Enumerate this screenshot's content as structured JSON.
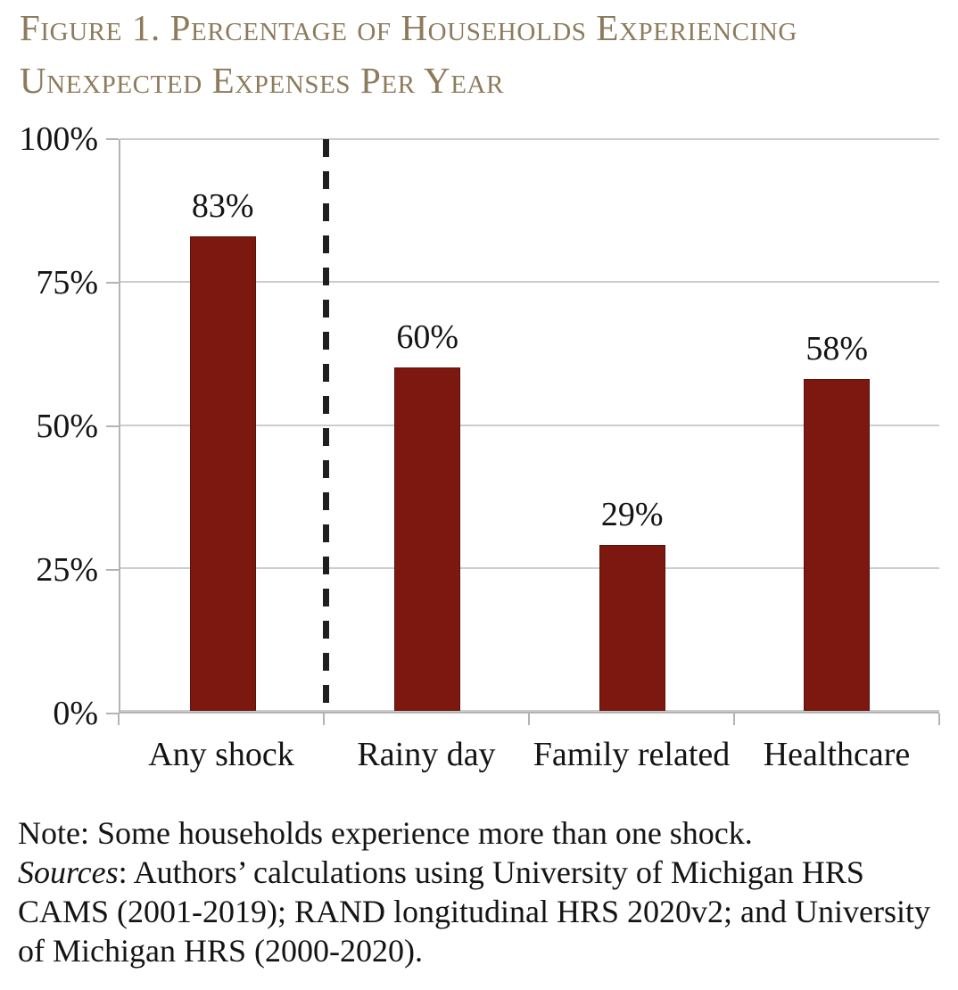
{
  "title": {
    "line1": "Figure 1. Percentage of Households Experiencing",
    "line2": "Unexpected Expenses Per Year",
    "color": "#8d7b5c"
  },
  "chart_data": {
    "type": "bar",
    "title": "Figure 1. Percentage of Households Experiencing Unexpected Expenses Per Year",
    "categories": [
      "Any shock",
      "Rainy day",
      "Family related",
      "Healthcare"
    ],
    "values": [
      83,
      60,
      29,
      58
    ],
    "value_labels": [
      "83%",
      "60%",
      "29%",
      "58%"
    ],
    "xlabel": "",
    "ylabel": "",
    "ylim": [
      0,
      100
    ],
    "ytick_values": [
      100,
      75,
      50,
      25,
      0
    ],
    "ytick_labels": [
      "100%",
      "75%",
      "50%",
      "25%",
      "0%"
    ],
    "grid": true,
    "legend": false,
    "bar_color": "#7c180f",
    "separator": {
      "style": "vertical-dashed",
      "color": "#1f1f1f",
      "after_category_index": 0
    }
  },
  "notes": {
    "note_line": "Note: Some households experience more than one shock.",
    "sources_label": "Sources",
    "sources_rest": ": Authors’ calculations using University of Michigan HRS CAMS (2001-2019); RAND longitudinal HRS 2020v2; and University of Michigan HRS (2000-2020)."
  }
}
